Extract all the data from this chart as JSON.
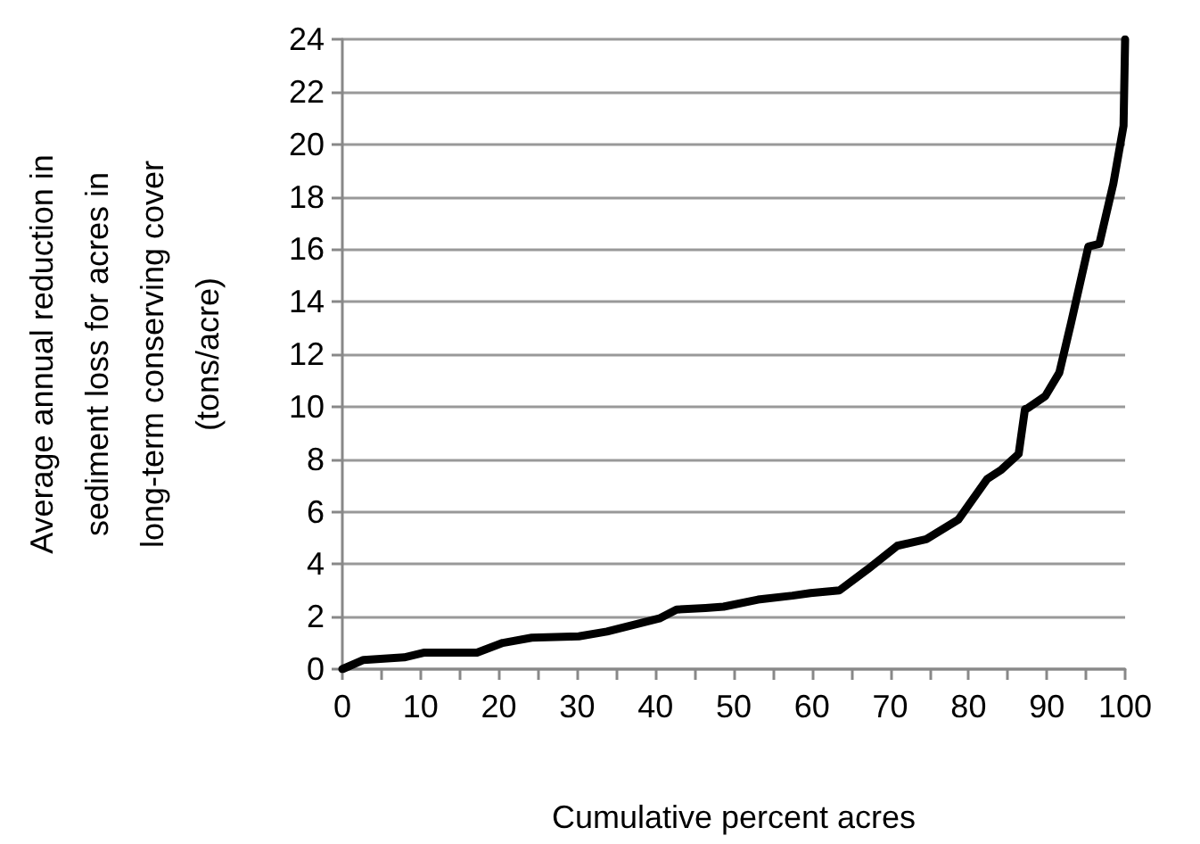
{
  "chart_data": {
    "type": "line",
    "xlabel": "Cumulative percent acres",
    "ylabel": "Average annual reduction in\nsediment loss for acres in\nlong-term conserving cover\n(tons/acre)",
    "x": [
      0,
      2.7,
      7.9,
      10.5,
      17.2,
      20.5,
      24.2,
      30.2,
      33.8,
      40.5,
      42.7,
      46.4,
      48.7,
      53.1,
      57.5,
      59.8,
      63.5,
      67.1,
      70.9,
      74.6,
      78.7,
      82.4,
      84.2,
      86.4,
      87.2,
      87.6,
      89.8,
      91.6,
      93.1,
      95.3,
      96.7,
      98.5,
      99.8,
      100
    ],
    "series": [
      {
        "color": "#000000",
        "values": [
          0,
          0.35,
          0.45,
          0.63,
          0.63,
          1.0,
          1.2,
          1.25,
          1.43,
          1.93,
          2.27,
          2.33,
          2.38,
          2.65,
          2.8,
          2.9,
          3.0,
          3.8,
          4.7,
          4.95,
          5.7,
          7.25,
          7.6,
          8.2,
          9.9,
          9.95,
          10.4,
          11.3,
          13.2,
          16.1,
          16.2,
          18.5,
          20.7,
          24
        ]
      }
    ],
    "xlim": [
      0,
      100
    ],
    "xticks": [
      0,
      {
        "value": 5,
        "label": null
      },
      10,
      {
        "value": 15,
        "label": null
      },
      20,
      {
        "value": 25,
        "label": null
      },
      30,
      {
        "value": 35,
        "label": null
      },
      40,
      {
        "value": 45,
        "label": null
      },
      50,
      {
        "value": 55,
        "label": null
      },
      60,
      {
        "value": 65,
        "label": null
      },
      70,
      {
        "value": 75,
        "label": null
      },
      80,
      {
        "value": 85,
        "label": null
      },
      90,
      {
        "value": 95,
        "label": null
      },
      100
    ],
    "ylim": [
      0,
      24
    ],
    "yticks": [
      0,
      2,
      4,
      6,
      8,
      10,
      12,
      14,
      16,
      18,
      20,
      22,
      24
    ],
    "grid": "y",
    "marker": "none",
    "line_style": "solid"
  }
}
